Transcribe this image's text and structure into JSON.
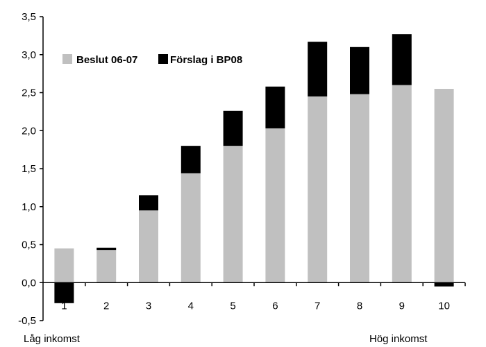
{
  "chart_data": {
    "type": "bar",
    "stacked": true,
    "categories": [
      "1",
      "2",
      "3",
      "4",
      "5",
      "6",
      "7",
      "8",
      "9",
      "10"
    ],
    "series": [
      {
        "name": "Beslut 06-07",
        "color": "#c0c0c0",
        "values": [
          0.45,
          0.43,
          0.95,
          1.44,
          1.8,
          2.03,
          2.45,
          2.48,
          2.6,
          2.55
        ]
      },
      {
        "name": "Förslag i BP08",
        "color": "#000000",
        "values": [
          -0.27,
          0.03,
          0.2,
          0.36,
          0.46,
          0.55,
          0.72,
          0.62,
          0.67,
          -0.05
        ]
      }
    ],
    "ylim": [
      -0.5,
      3.5
    ],
    "yticks": [
      "-0,5",
      "0,0",
      "0,5",
      "1,0",
      "1,5",
      "2,0",
      "2,5",
      "3,0",
      "3,5"
    ],
    "ytick_values": [
      -0.5,
      0,
      0.5,
      1.0,
      1.5,
      2.0,
      2.5,
      3.0,
      3.5
    ],
    "legend_position": "top-left",
    "grid": false
  },
  "labels": {
    "low_income": "Låg inkomst",
    "high_income": "Hög inkomst"
  }
}
